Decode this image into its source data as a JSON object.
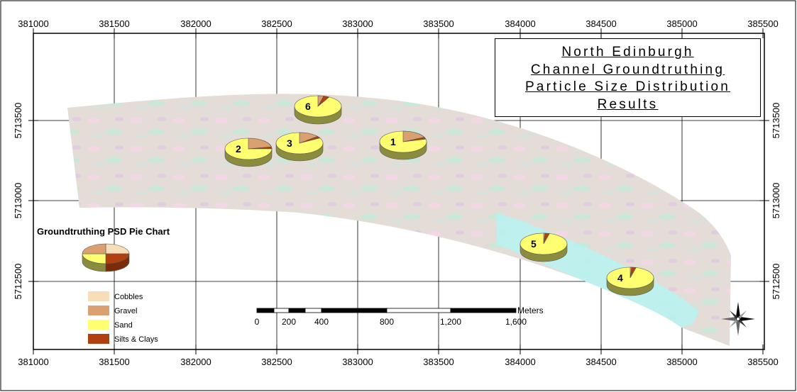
{
  "title_lines": [
    "North Edinburgh",
    "Channel Groundtruthing",
    "Particle Size Distribution",
    "Results"
  ],
  "x_axis_labels": [
    "381000",
    "381500",
    "382000",
    "382500",
    "383000",
    "383500",
    "384000",
    "384500",
    "385000",
    "385500"
  ],
  "y_axis_labels": [
    "5713500",
    "5713000",
    "5712500"
  ],
  "legend": {
    "title": "Groundtruthing PSD Pie Chart",
    "items": [
      {
        "label": "Cobbles",
        "color": "#f7deb8"
      },
      {
        "label": "Gravel",
        "color": "#dba070"
      },
      {
        "label": "Sand",
        "color": "#ffff70"
      },
      {
        "label": "Silts & Clays",
        "color": "#b04010"
      }
    ]
  },
  "scale_bar": {
    "unit": "Meters",
    "labels": [
      "0",
      "200",
      "400",
      "800",
      "1,200",
      "1,600"
    ]
  },
  "sites": [
    {
      "id": "1",
      "gravel": 0.18,
      "silt": 0.03
    },
    {
      "id": "2",
      "gravel": 0.22,
      "silt": 0.03
    },
    {
      "id": "3",
      "gravel": 0.14,
      "silt": 0.03
    },
    {
      "id": "4",
      "gravel": 0.01,
      "silt": 0.03
    },
    {
      "id": "5",
      "gravel": 0.01,
      "silt": 0.03
    },
    {
      "id": "6",
      "gravel": 0.04,
      "silt": 0.04
    }
  ]
}
